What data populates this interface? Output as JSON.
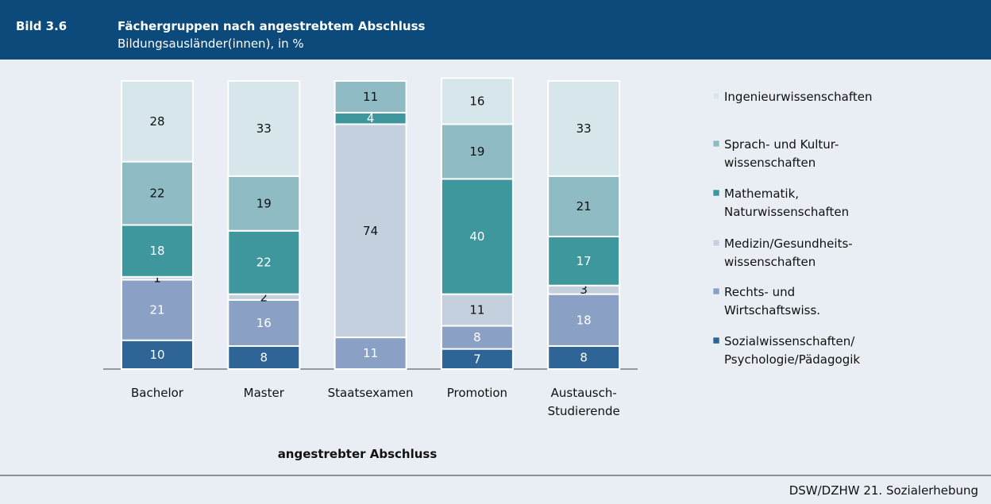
{
  "chart_data": {
    "type": "stacked_bar",
    "figure_label": "Bild 3.6",
    "title": "Fächergruppen nach angestrebtem Abschluss",
    "subtitle": "Bildungsausländer(innen), in %",
    "x_label": "angestrebter Abschluss",
    "source": "DSW/DZHW 21. Sozialerhebung",
    "categories": [
      "Bachelor",
      "Master",
      "Staatsexamen",
      "Promotion",
      "Austausch-\nStudierende"
    ],
    "series": [
      {
        "name": "Sozialwissenschaften/\nPsychologie/Pädagogik",
        "color": "#2f6496",
        "values": [
          10,
          8,
          null,
          7,
          8
        ]
      },
      {
        "name": "Rechts- und\nWirtschaftswiss.",
        "color": "#8aa0c4",
        "values": [
          21,
          16,
          11,
          8,
          18
        ]
      },
      {
        "name": "Medizin/Gesundheits-\nwissenschaften",
        "color": "#c5d0df",
        "values": [
          1,
          2,
          74,
          11,
          3
        ]
      },
      {
        "name": "Mathematik,\nNaturwissenschaften",
        "color": "#3f979e",
        "values": [
          18,
          22,
          4,
          40,
          17
        ]
      },
      {
        "name": "Sprach- und Kultur-\nwissenschaften",
        "color": "#8fbcc4",
        "values": [
          22,
          19,
          11,
          19,
          21
        ]
      },
      {
        "name": "Ingenieurwissenschaften",
        "color": "#d6e6ea",
        "values": [
          28,
          33,
          null,
          16,
          33
        ]
      }
    ]
  }
}
